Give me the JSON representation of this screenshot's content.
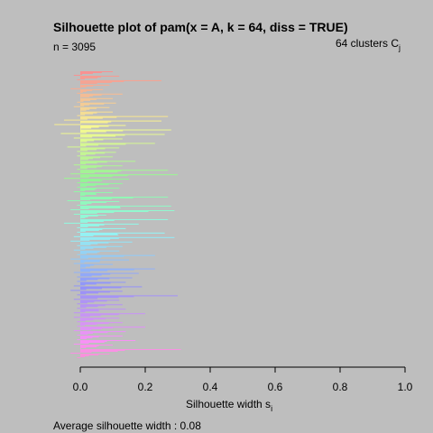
{
  "chart_data": {
    "type": "bar",
    "orientation": "horizontal",
    "title": "Silhouette plot of pam(x = A, k = 64, diss = TRUE)",
    "n_label": "n = 3095",
    "clusters_label_prefix": "64  clusters  C",
    "clusters_label_sub": "j",
    "xlabel_main": "Silhouette width s",
    "xlabel_sub": "i",
    "footer": "Average silhouette width :  0.08",
    "xlim": [
      0,
      1
    ],
    "x_ticks": [
      "0.0",
      "0.2",
      "0.4",
      "0.6",
      "0.8",
      "1.0"
    ],
    "n_obs": 3095,
    "n_clusters": 64,
    "average_width": 0.08,
    "hue_start": 0.0,
    "hue_end": 0.88,
    "cluster_max_widths": [
      0.1,
      0.12,
      0.25,
      0.09,
      0.07,
      0.13,
      0.1,
      0.11,
      0.09,
      0.1,
      0.27,
      0.25,
      0.14,
      0.28,
      0.26,
      0.13,
      0.23,
      0.12,
      0.11,
      0.1,
      0.17,
      0.13,
      0.27,
      0.3,
      0.15,
      0.13,
      0.12,
      0.1,
      0.27,
      0.12,
      0.28,
      0.29,
      0.08,
      0.27,
      0.18,
      0.14,
      0.26,
      0.29,
      0.16,
      0.13,
      0.12,
      0.23,
      0.15,
      0.1,
      0.23,
      0.18,
      0.16,
      0.14,
      0.19,
      0.13,
      0.3,
      0.12,
      0.13,
      0.14,
      0.2,
      0.12,
      0.13,
      0.2,
      0.14,
      0.13,
      0.17,
      0.1,
      0.31,
      0.09
    ],
    "cluster_min_widths": [
      -0.02,
      -0.01,
      0.0,
      -0.03,
      -0.01,
      0.0,
      -0.01,
      -0.02,
      0.0,
      -0.01,
      -0.05,
      -0.08,
      0.0,
      -0.06,
      -0.02,
      0.0,
      -0.04,
      -0.01,
      -0.01,
      0.0,
      -0.02,
      -0.01,
      -0.03,
      -0.05,
      -0.01,
      -0.01,
      -0.02,
      0.0,
      -0.04,
      -0.01,
      -0.03,
      -0.02,
      0.0,
      -0.05,
      -0.01,
      -0.01,
      -0.02,
      -0.03,
      -0.01,
      -0.02,
      -0.01,
      -0.03,
      -0.02,
      0.0,
      -0.02,
      -0.01,
      -0.01,
      -0.02,
      -0.03,
      -0.01,
      -0.02,
      -0.01,
      -0.01,
      -0.02,
      -0.02,
      -0.01,
      -0.01,
      -0.02,
      -0.01,
      -0.01,
      -0.02,
      0.0,
      -0.03,
      -0.01
    ]
  }
}
